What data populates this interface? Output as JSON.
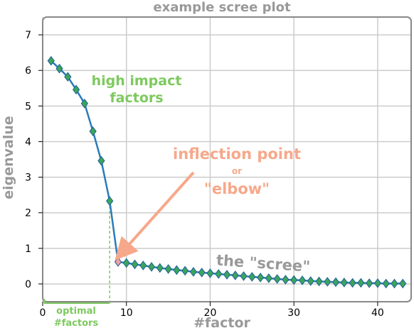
{
  "chart_data": {
    "type": "line",
    "title": "example scree plot",
    "xlabel": "#factor",
    "ylabel": "eigenvalue",
    "xlim": [
      0,
      44
    ],
    "ylim": [
      -0.5,
      7.5
    ],
    "xticks": [
      0,
      10,
      20,
      30,
      40
    ],
    "yticks": [
      0,
      1,
      2,
      3,
      4,
      5,
      6,
      7
    ],
    "grid": true,
    "series": [
      {
        "x": [
          1,
          2,
          3,
          4,
          5,
          6,
          7,
          8,
          9,
          10,
          11,
          12,
          13,
          14,
          15,
          16,
          17,
          18,
          19,
          20,
          21,
          22,
          23,
          24,
          25,
          26,
          27,
          28,
          29,
          30,
          31,
          32,
          33,
          34,
          35,
          36,
          37,
          38,
          39,
          40,
          41,
          42,
          43
        ],
        "values": [
          6.27,
          6.05,
          5.82,
          5.46,
          5.07,
          4.29,
          3.46,
          2.33,
          0.62,
          0.59,
          0.55,
          0.52,
          0.48,
          0.45,
          0.42,
          0.39,
          0.37,
          0.34,
          0.32,
          0.3,
          0.28,
          0.26,
          0.24,
          0.22,
          0.2,
          0.18,
          0.16,
          0.14,
          0.12,
          0.11,
          0.1,
          0.08,
          0.07,
          0.06,
          0.05,
          0.04,
          0.03,
          0.03,
          0.02,
          0.02,
          0.01,
          0.01,
          0.01
        ]
      }
    ],
    "highlight_point": {
      "x": 9,
      "y": 0.62
    },
    "optimal_factors": 8,
    "annotations": {
      "high_impact_line1": "high impact",
      "high_impact_line2": "factors",
      "inflection_line1": "inflection point",
      "inflection_line2": "or",
      "inflection_line3": "\"elbow\"",
      "scree": "the \"scree\"",
      "optimal_line1": "optimal",
      "optimal_line2": "#factors"
    },
    "colors": {
      "line": "#2b7bba",
      "marker": "#3ba55a",
      "marker_edge": "#1f5f99",
      "highlight_marker": "#f0a0a0",
      "high_impact_text": "#7dc95e",
      "inflection_text": "#f7a88a",
      "scree_text": "#999999",
      "title_text": "#999999",
      "grid": "#cccccc"
    }
  }
}
